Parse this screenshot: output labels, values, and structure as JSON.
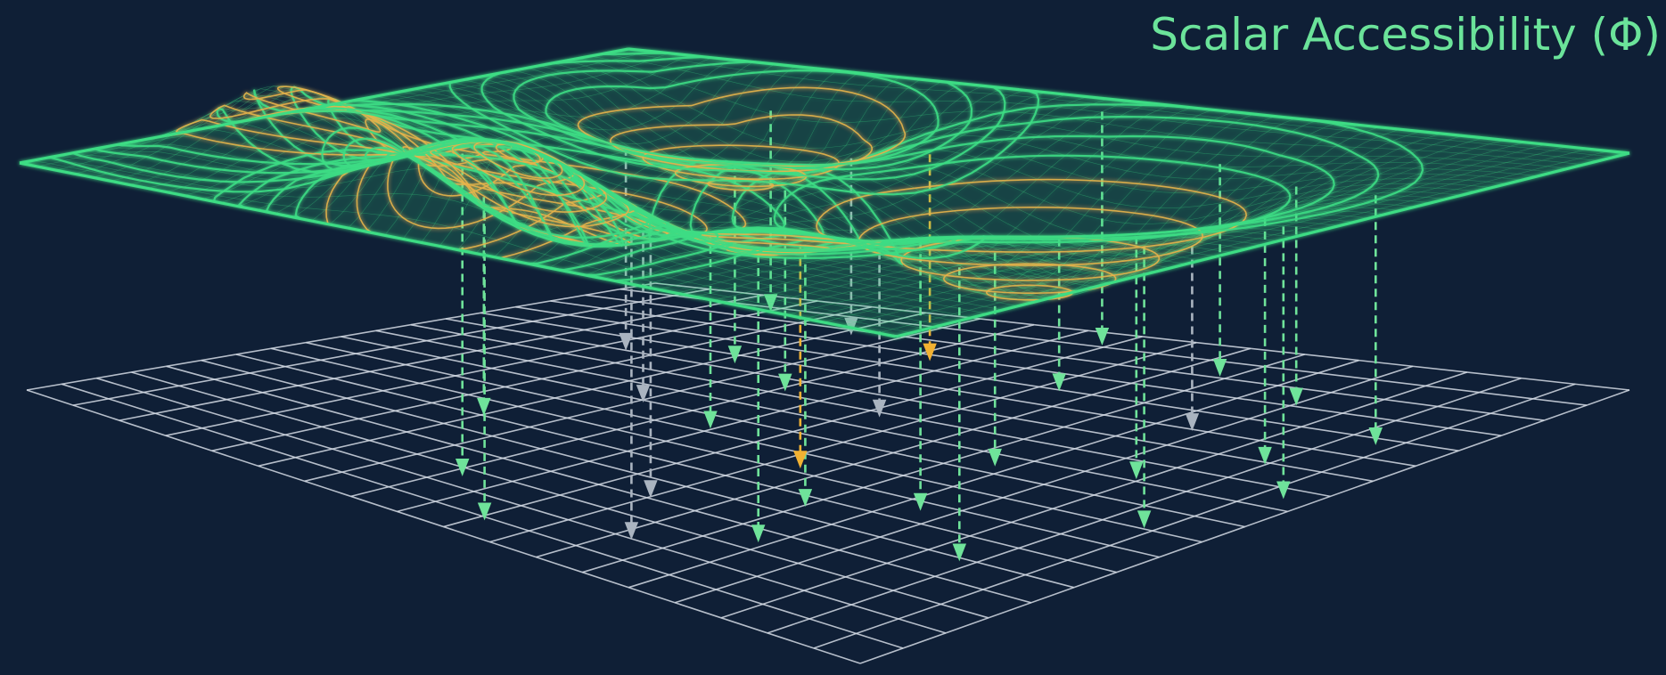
{
  "title": "Scalar Accessibility (Φ)",
  "colors": {
    "background": "#0f1f36",
    "surface": "#3ddc84",
    "surface_glow": "#2bd36f",
    "wells": "#e8b34a",
    "grid": "#d4dbe4",
    "arrow_green": "#6fe39a",
    "arrow_gray": "#aab4c0",
    "arrow_orange": "#f2b233",
    "title": "#6be39a"
  },
  "diagram": {
    "surface": "scalar field surface (green contour wireframe)",
    "wells": [
      "left-well-icon",
      "front-left-well-icon",
      "center-well-icon",
      "right-well-icon"
    ],
    "peaks": [
      "back-left-peak-icon",
      "back-right-peak-icon"
    ],
    "plane": "flat reference grid",
    "arrows": "dashed downward projection arrows"
  }
}
